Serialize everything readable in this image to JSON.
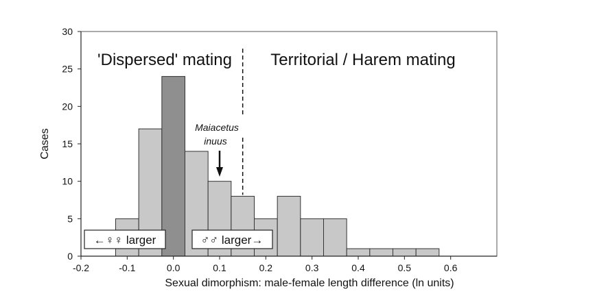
{
  "chart_data": {
    "type": "bar",
    "xlabel": "Sexual dimorphism:  male-female length difference (ln units)",
    "ylabel": "Cases",
    "xlim": [
      -0.2,
      0.7
    ],
    "ylim": [
      0,
      30
    ],
    "x_ticks": [
      -0.2,
      -0.1,
      0.0,
      0.1,
      0.2,
      0.3,
      0.4,
      0.5,
      0.6
    ],
    "x_tick_labels": [
      "-0.2",
      "-0.1",
      "0.0",
      "0.1",
      "0.2",
      "0.3",
      "0.4",
      "0.5",
      "0.6"
    ],
    "y_ticks": [
      0,
      5,
      10,
      15,
      20,
      25,
      30
    ],
    "y_tick_labels": [
      "0",
      "5",
      "10",
      "15",
      "20",
      "25",
      "30"
    ],
    "grid": false,
    "bin_width": 0.05,
    "bins": [
      {
        "start": -0.125,
        "end": -0.075,
        "value": 5,
        "highlight": false
      },
      {
        "start": -0.075,
        "end": -0.025,
        "value": 17,
        "highlight": false
      },
      {
        "start": -0.025,
        "end": 0.025,
        "value": 24,
        "highlight": true
      },
      {
        "start": 0.025,
        "end": 0.075,
        "value": 14,
        "highlight": false
      },
      {
        "start": 0.075,
        "end": 0.125,
        "value": 10,
        "highlight": false
      },
      {
        "start": 0.125,
        "end": 0.175,
        "value": 8,
        "highlight": false
      },
      {
        "start": 0.175,
        "end": 0.225,
        "value": 5,
        "highlight": false
      },
      {
        "start": 0.225,
        "end": 0.275,
        "value": 8,
        "highlight": false
      },
      {
        "start": 0.275,
        "end": 0.325,
        "value": 5,
        "highlight": false
      },
      {
        "start": 0.325,
        "end": 0.375,
        "value": 5,
        "highlight": false
      },
      {
        "start": 0.375,
        "end": 0.425,
        "value": 1,
        "highlight": false
      },
      {
        "start": 0.425,
        "end": 0.475,
        "value": 1,
        "highlight": false
      },
      {
        "start": 0.475,
        "end": 0.525,
        "value": 1,
        "highlight": false
      },
      {
        "start": 0.525,
        "end": 0.575,
        "value": 1,
        "highlight": false
      }
    ],
    "colors": {
      "bar": "#c8c8c8",
      "highlight_bar": "#8f8f8f",
      "bar_edge": "#333333"
    },
    "divider_x": 0.15,
    "region_labels": {
      "left": "'Dispersed' mating",
      "right": "Territorial / Harem mating"
    },
    "annotation": {
      "line1": "Maiacetus",
      "line2": "inuus",
      "x": 0.1
    },
    "box_labels": {
      "left": "←♀♀ larger",
      "right": "♂♂ larger→"
    }
  }
}
